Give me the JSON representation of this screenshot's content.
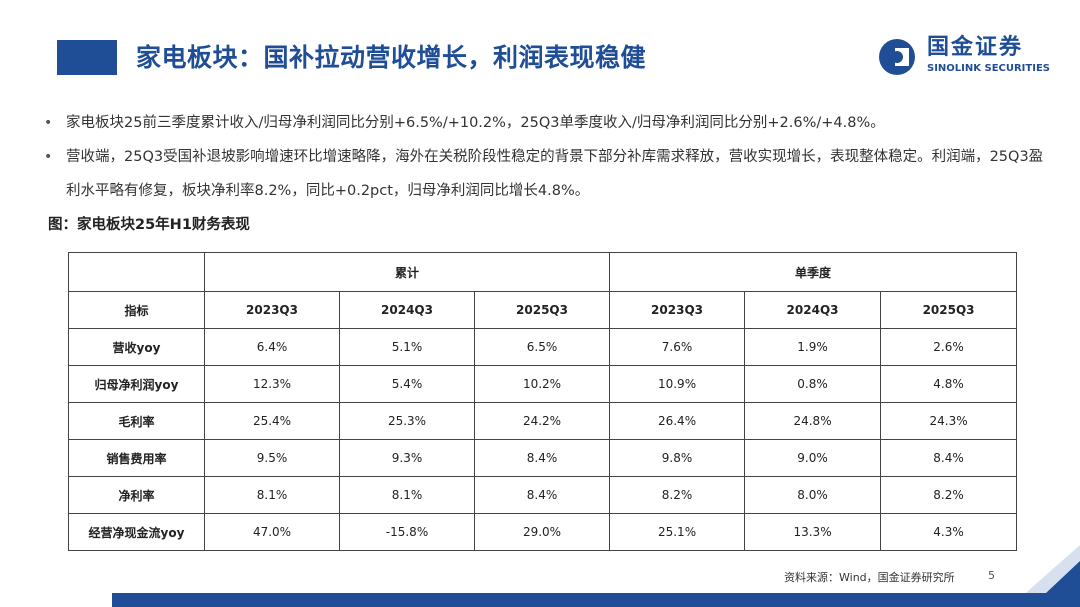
{
  "header": {
    "title": "家电板块：国补拉动营收增长，利润表现稳健",
    "logo_cn": "国金证券",
    "logo_en": "SINOLINK SECURITIES",
    "accent_color": "#1f4e96"
  },
  "bullets": [
    "家电板块25前三季度累计收入/归母净利润同比分别+6.5%/+10.2%，25Q3单季度收入/归母净利润同比分别+2.6%/+4.8%。",
    "营收端，25Q3受国补退坡影响增速环比增速略降，海外在关税阶段性稳定的背景下部分补库需求释放，营收实现增长，表现整体稳定。利润端，25Q3盈利水平略有修复，板块净利率8.2%，同比+0.2pct，归母净利润同比增长4.8%。"
  ],
  "figure": {
    "title": "图：家电板块25年H1财务表现"
  },
  "table": {
    "group_headers": [
      "累计",
      "单季度"
    ],
    "metric_header": "指标",
    "period_headers": [
      "2023Q3",
      "2024Q3",
      "2025Q3",
      "2023Q3",
      "2024Q3",
      "2025Q3"
    ],
    "rows": [
      {
        "label": "营收yoy",
        "values": [
          "6.4%",
          "5.1%",
          "6.5%",
          "7.6%",
          "1.9%",
          "2.6%"
        ]
      },
      {
        "label": "归母净利润yoy",
        "values": [
          "12.3%",
          "5.4%",
          "10.2%",
          "10.9%",
          "0.8%",
          "4.8%"
        ]
      },
      {
        "label": "毛利率",
        "values": [
          "25.4%",
          "25.3%",
          "24.2%",
          "26.4%",
          "24.8%",
          "24.3%"
        ]
      },
      {
        "label": "销售费用率",
        "values": [
          "9.5%",
          "9.3%",
          "8.4%",
          "9.8%",
          "9.0%",
          "8.4%"
        ]
      },
      {
        "label": "净利率",
        "values": [
          "8.1%",
          "8.1%",
          "8.4%",
          "8.2%",
          "8.0%",
          "8.2%"
        ]
      },
      {
        "label": "经营净现金流yoy",
        "values": [
          "47.0%",
          "-15.8%",
          "29.0%",
          "25.1%",
          "13.3%",
          "4.3%"
        ]
      }
    ]
  },
  "footer": {
    "source": "资料来源：Wind，国金证券研究所",
    "page_number": "5"
  }
}
